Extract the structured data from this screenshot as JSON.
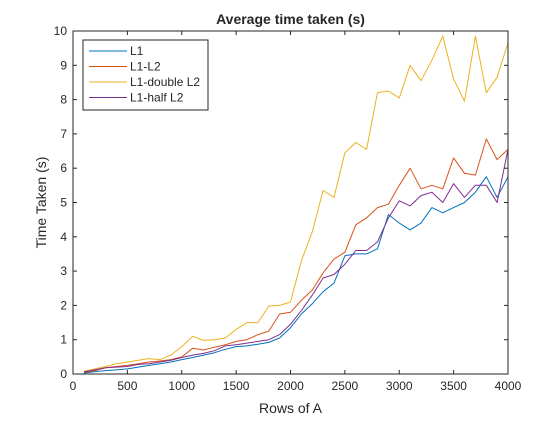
{
  "chart_data": {
    "type": "line",
    "title": "Average time taken (s)",
    "xlabel": "Rows of A",
    "ylabel": "Time Taken (s)",
    "xlim": [
      0,
      4000
    ],
    "ylim": [
      0,
      10
    ],
    "xticks": [
      "0",
      "500",
      "1000",
      "1500",
      "2000",
      "2500",
      "3000",
      "3500",
      "4000"
    ],
    "yticks": [
      "0",
      "1",
      "2",
      "3",
      "4",
      "5",
      "6",
      "7",
      "8",
      "9",
      "10"
    ],
    "grid": false,
    "legend_position": "top-left",
    "x": [
      100,
      200,
      300,
      400,
      500,
      600,
      700,
      800,
      900,
      1000,
      1100,
      1200,
      1300,
      1400,
      1500,
      1600,
      1700,
      1800,
      1900,
      2000,
      2100,
      2200,
      2300,
      2400,
      2500,
      2600,
      2700,
      2800,
      2900,
      3000,
      3100,
      3200,
      3300,
      3400,
      3500,
      3600,
      3700,
      3800,
      3900,
      4000
    ],
    "series": [
      {
        "name": "L1",
        "color": "#0072BD",
        "values": [
          0.03,
          0.07,
          0.1,
          0.12,
          0.15,
          0.2,
          0.25,
          0.3,
          0.35,
          0.42,
          0.48,
          0.55,
          0.62,
          0.72,
          0.8,
          0.82,
          0.87,
          0.92,
          1.05,
          1.35,
          1.75,
          2.05,
          2.4,
          2.65,
          3.45,
          3.5,
          3.5,
          3.65,
          4.65,
          4.4,
          4.2,
          4.4,
          4.85,
          4.7,
          4.85,
          5.0,
          5.3,
          5.75,
          5.15,
          5.75
        ]
      },
      {
        "name": "L1-L2",
        "color": "#D95319",
        "values": [
          0.05,
          0.1,
          0.18,
          0.22,
          0.25,
          0.3,
          0.35,
          0.38,
          0.42,
          0.5,
          0.75,
          0.7,
          0.78,
          0.85,
          0.95,
          1.0,
          1.15,
          1.25,
          1.75,
          1.8,
          2.15,
          2.45,
          2.95,
          3.35,
          3.55,
          4.35,
          4.55,
          4.85,
          4.95,
          5.5,
          6.0,
          5.4,
          5.5,
          5.4,
          6.3,
          5.85,
          5.8,
          6.85,
          6.25,
          6.55
        ]
      },
      {
        "name": "L1-double L2",
        "color": "#EDB120",
        "values": [
          0.08,
          0.15,
          0.22,
          0.3,
          0.35,
          0.4,
          0.45,
          0.42,
          0.55,
          0.8,
          1.1,
          0.98,
          1.0,
          1.05,
          1.3,
          1.5,
          1.5,
          1.98,
          2.0,
          2.1,
          3.3,
          4.15,
          5.35,
          5.15,
          6.45,
          6.75,
          6.55,
          8.2,
          8.25,
          8.05,
          9.0,
          8.55,
          9.15,
          9.85,
          8.6,
          7.95,
          9.85,
          8.2,
          8.65,
          9.65
        ]
      },
      {
        "name": "L1-half L2",
        "color": "#7E2F8E",
        "values": [
          0.06,
          0.12,
          0.18,
          0.2,
          0.22,
          0.28,
          0.3,
          0.35,
          0.4,
          0.48,
          0.55,
          0.6,
          0.68,
          0.82,
          0.85,
          0.9,
          0.95,
          1.0,
          1.15,
          1.45,
          1.85,
          2.3,
          2.8,
          2.9,
          3.2,
          3.6,
          3.6,
          3.85,
          4.55,
          5.05,
          4.9,
          5.2,
          5.3,
          5.0,
          5.55,
          5.15,
          5.5,
          5.5,
          5.0,
          6.55
        ]
      }
    ]
  }
}
